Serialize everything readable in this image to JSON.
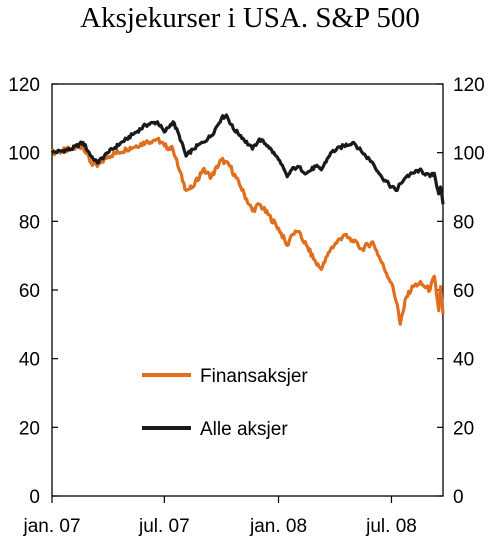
{
  "chart_data": {
    "type": "line",
    "title": "Aksjekurser i USA. S&P 500",
    "xlabel": "",
    "ylabel": "",
    "x_ticks": [
      "jan. 07",
      "jul. 07",
      "jan. 08",
      "jul. 08"
    ],
    "ylim": [
      0,
      120
    ],
    "y_ticks": [
      0,
      20,
      40,
      60,
      80,
      100,
      120
    ],
    "secondary_y_axis": true,
    "grid": false,
    "legend": "center-left, inside plot",
    "series": [
      {
        "name": "Finansaksjer",
        "color": "#E06E1E",
        "x": [
          "2007-01-01",
          "2007-02-01",
          "2007-02-20",
          "2007-03-05",
          "2007-03-15",
          "2007-04-01",
          "2007-05-01",
          "2007-06-01",
          "2007-06-20",
          "2007-07-01",
          "2007-07-15",
          "2007-07-25",
          "2007-08-05",
          "2007-08-16",
          "2007-09-01",
          "2007-09-15",
          "2007-10-01",
          "2007-10-15",
          "2007-11-01",
          "2007-11-20",
          "2007-12-01",
          "2007-12-15",
          "2008-01-01",
          "2008-01-15",
          "2008-01-22",
          "2008-02-01",
          "2008-02-15",
          "2008-03-01",
          "2008-03-10",
          "2008-03-25",
          "2008-04-15",
          "2008-05-01",
          "2008-05-15",
          "2008-06-01",
          "2008-06-15",
          "2008-07-01",
          "2008-07-10",
          "2008-07-15",
          "2008-07-25",
          "2008-08-05",
          "2008-08-15",
          "2008-09-01",
          "2008-09-08",
          "2008-09-15",
          "2008-09-18",
          "2008-09-22"
        ],
        "values": [
          100,
          101,
          102,
          97,
          96,
          99,
          101,
          103,
          104,
          102,
          101,
          95,
          89,
          90,
          95,
          93,
          98,
          96,
          90,
          83,
          85,
          82,
          78,
          73,
          76,
          77,
          73,
          68,
          66,
          72,
          76,
          74,
          72,
          74,
          68,
          62,
          56,
          50,
          58,
          61,
          62,
          60,
          64,
          54,
          61,
          53
        ]
      },
      {
        "name": "Alle aksjer",
        "color": "#1A1A1A",
        "x": [
          "2007-01-01",
          "2007-02-01",
          "2007-02-20",
          "2007-03-05",
          "2007-03-15",
          "2007-04-01",
          "2007-05-01",
          "2007-06-01",
          "2007-06-20",
          "2007-07-01",
          "2007-07-15",
          "2007-07-25",
          "2007-08-05",
          "2007-08-16",
          "2007-09-01",
          "2007-09-15",
          "2007-10-01",
          "2007-10-09",
          "2007-10-20",
          "2007-11-01",
          "2007-11-20",
          "2007-12-01",
          "2007-12-15",
          "2008-01-01",
          "2008-01-15",
          "2008-01-22",
          "2008-02-01",
          "2008-02-15",
          "2008-03-01",
          "2008-03-10",
          "2008-03-25",
          "2008-04-15",
          "2008-05-01",
          "2008-05-15",
          "2008-06-01",
          "2008-06-15",
          "2008-07-01",
          "2008-07-10",
          "2008-07-15",
          "2008-07-25",
          "2008-08-05",
          "2008-08-15",
          "2008-09-01",
          "2008-09-08",
          "2008-09-15",
          "2008-09-18",
          "2008-09-22"
        ],
        "values": [
          100,
          101,
          103,
          99,
          97,
          100,
          104,
          108,
          109,
          106,
          109,
          105,
          99,
          101,
          103,
          105,
          110,
          111,
          107,
          105,
          101,
          104,
          102,
          98,
          93,
          95,
          96,
          94,
          96,
          95,
          100,
          102,
          103,
          100,
          97,
          93,
          90,
          89,
          91,
          93,
          94,
          95,
          93,
          94,
          88,
          90,
          85
        ]
      }
    ]
  }
}
